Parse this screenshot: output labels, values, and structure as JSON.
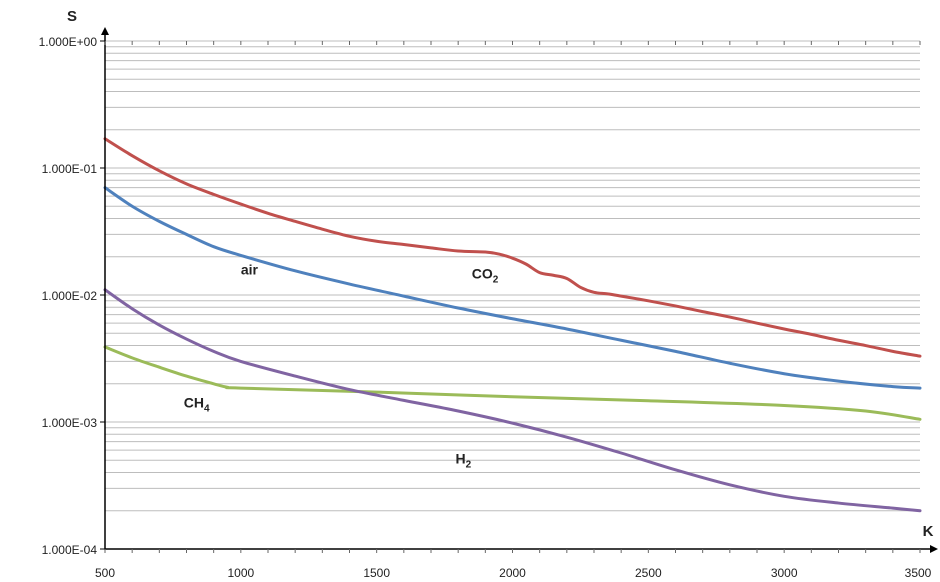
{
  "chart_data": {
    "type": "line",
    "title": "",
    "xlabel": "K",
    "ylabel": "S",
    "x_scale": "linear",
    "y_scale": "log",
    "xlim": [
      500,
      3500
    ],
    "ylim": [
      0.0001,
      1
    ],
    "x_ticks": [
      500,
      1000,
      1500,
      2000,
      2500,
      3000,
      3500
    ],
    "x_tick_labels": [
      "500",
      "1000",
      "1500",
      "2000",
      "2500",
      "3000",
      "3500"
    ],
    "y_ticks": [
      0.0001,
      0.001,
      0.01,
      0.1,
      1
    ],
    "y_tick_labels": [
      "1.000E-04",
      "1.000E-03",
      "1.000E-02",
      "1.000E-01",
      "1.000E+00"
    ],
    "grid": "horizontal minor",
    "series": [
      {
        "label_main": "CO",
        "label_sub": "2",
        "color": "#c0504d",
        "label_at": [
          1850,
          0.0135
        ],
        "x": [
          500,
          600,
          700,
          800,
          900,
          1000,
          1100,
          1200,
          1300,
          1400,
          1500,
          1600,
          1700,
          1800,
          1900,
          1950,
          2000,
          2050,
          2100,
          2150,
          2200,
          2250,
          2300,
          2350,
          2400,
          2500,
          2600,
          2700,
          2800,
          2900,
          3000,
          3100,
          3200,
          3300,
          3400,
          3500
        ],
        "y": [
          0.17,
          0.125,
          0.095,
          0.075,
          0.062,
          0.052,
          0.044,
          0.038,
          0.033,
          0.029,
          0.0265,
          0.025,
          0.0235,
          0.0222,
          0.0218,
          0.021,
          0.0195,
          0.0175,
          0.015,
          0.0143,
          0.0135,
          0.0115,
          0.0105,
          0.0102,
          0.0098,
          0.009,
          0.0082,
          0.0074,
          0.0067,
          0.006,
          0.0054,
          0.0049,
          0.0044,
          0.004,
          0.0036,
          0.0033
        ]
      },
      {
        "label_main": "air",
        "label_sub": "",
        "color": "#4f81bd",
        "label_at": [
          1000,
          0.0145
        ],
        "x": [
          500,
          600,
          700,
          800,
          900,
          1000,
          1200,
          1400,
          1600,
          1800,
          2000,
          2200,
          2400,
          2600,
          2800,
          3000,
          3200,
          3400,
          3500
        ],
        "y": [
          0.07,
          0.05,
          0.038,
          0.03,
          0.024,
          0.0205,
          0.0155,
          0.0122,
          0.0098,
          0.0079,
          0.0065,
          0.0054,
          0.0044,
          0.0036,
          0.0029,
          0.0024,
          0.0021,
          0.0019,
          0.00185
        ]
      },
      {
        "label_main": "CH",
        "label_sub": "4",
        "color": "#9bbb59",
        "label_at": [
          790,
          0.0013
        ],
        "x": [
          500,
          600,
          700,
          800,
          900,
          950,
          1000,
          1500,
          2000,
          2500,
          3000,
          3300,
          3500
        ],
        "y": [
          0.0039,
          0.0032,
          0.0027,
          0.0023,
          0.002,
          0.00188,
          0.00185,
          0.00172,
          0.00158,
          0.00147,
          0.00135,
          0.00122,
          0.00105
        ]
      },
      {
        "label_main": "H",
        "label_sub": "2",
        "color": "#8064a2",
        "label_at": [
          1790,
          0.00047
        ],
        "x": [
          500,
          600,
          700,
          800,
          900,
          1000,
          1200,
          1400,
          1600,
          1800,
          2000,
          2200,
          2400,
          2600,
          2800,
          3000,
          3200,
          3400,
          3500
        ],
        "y": [
          0.011,
          0.0078,
          0.0058,
          0.0045,
          0.0036,
          0.003,
          0.0023,
          0.0018,
          0.00148,
          0.00122,
          0.00098,
          0.00076,
          0.00057,
          0.00042,
          0.00032,
          0.00026,
          0.00023,
          0.00021,
          0.0002
        ]
      }
    ]
  }
}
